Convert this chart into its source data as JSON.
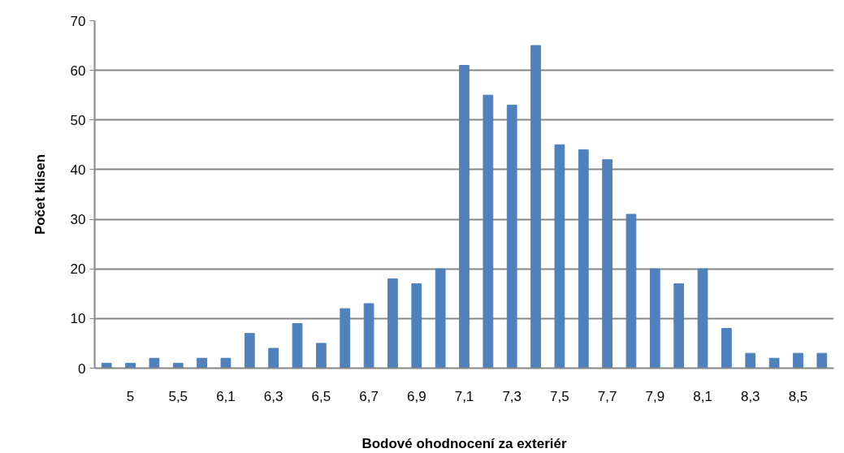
{
  "chart_data": {
    "type": "bar",
    "xlabel": "Bodové ohodnocení za exteriér",
    "ylabel": "Počet klisen",
    "categories": [
      null,
      "5",
      null,
      "5,5",
      null,
      "6,1",
      null,
      "6,3",
      null,
      "6,5",
      null,
      "6,7",
      null,
      "6,9",
      null,
      "7,1",
      null,
      "7,3",
      null,
      "7,5",
      null,
      "7,7",
      null,
      "7,9",
      null,
      "8,1",
      null,
      "8,3",
      null,
      "8,5",
      null
    ],
    "values": [
      1,
      1,
      2,
      1,
      2,
      2,
      7,
      4,
      9,
      5,
      12,
      13,
      18,
      17,
      20,
      61,
      55,
      53,
      65,
      45,
      44,
      42,
      31,
      20,
      17,
      20,
      8,
      3,
      2,
      3,
      3
    ],
    "color": "#4f81bd",
    "ylim": [
      0,
      70
    ],
    "yticks": [
      0,
      10,
      20,
      30,
      40,
      50,
      60,
      70
    ],
    "grid": "y"
  }
}
